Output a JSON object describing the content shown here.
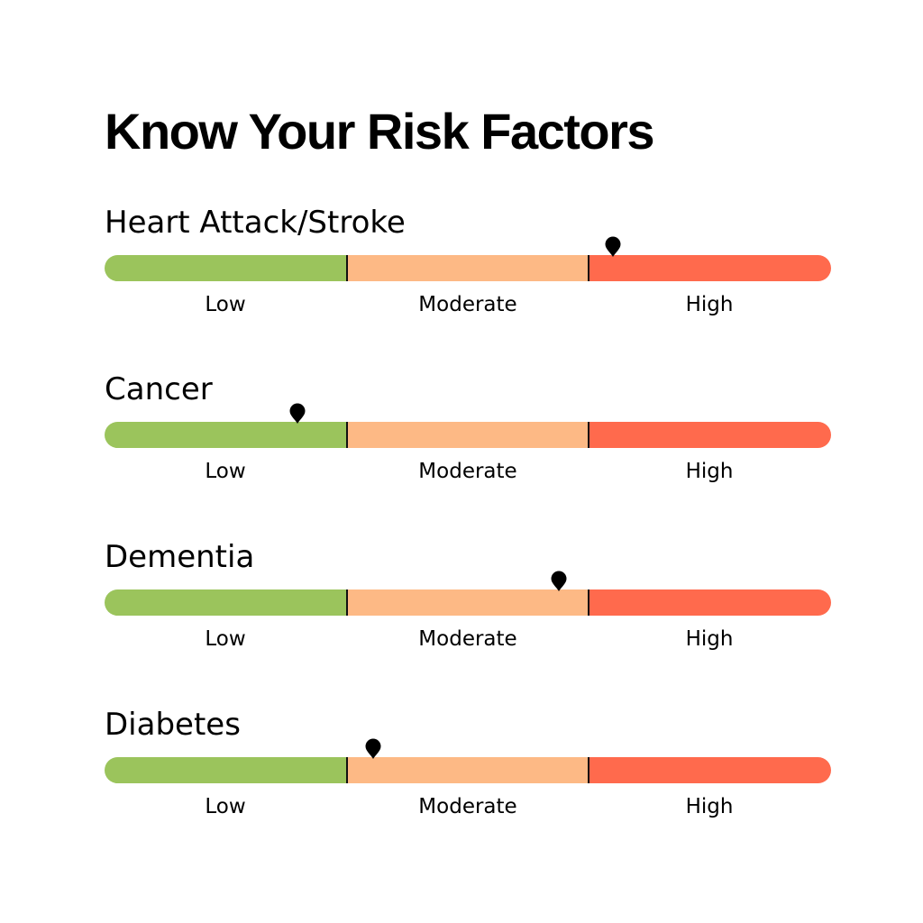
{
  "title": "Know Your Risk Factors",
  "levels": [
    "Low",
    "Moderate",
    "High"
  ],
  "level_colors": [
    "#9bc45c",
    "#fdb985",
    "#ff6a4d"
  ],
  "marker_icon": "map-pin-icon",
  "factors": [
    {
      "label": "Heart Attack/Stroke",
      "risk_position_fraction": 0.7
    },
    {
      "label": "Cancer",
      "risk_position_fraction": 0.265
    },
    {
      "label": "Dementia",
      "risk_position_fraction": 0.625
    },
    {
      "label": "Diabetes",
      "risk_position_fraction": 0.37
    }
  ]
}
